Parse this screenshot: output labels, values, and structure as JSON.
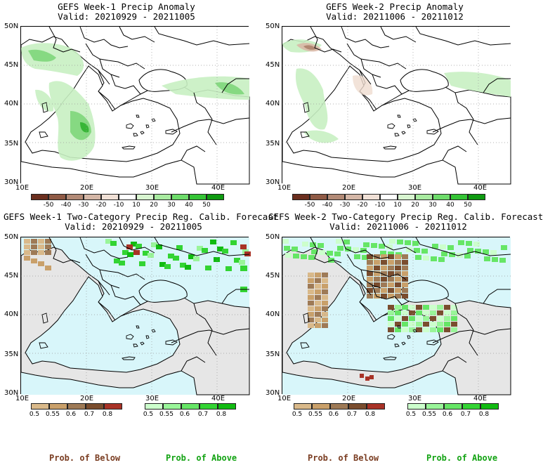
{
  "panels": [
    {
      "title1": "GEFS Week-1 Precip Anomaly",
      "title2": "Valid: 20210929 - 20211005"
    },
    {
      "title1": "GEFS Week-2 Precip Anomaly",
      "title2": "Valid: 20211006 - 20211012"
    },
    {
      "title1": "GEFS Week-1 Two-Category Precip Reg. Calib. Forecast",
      "title2": "Valid: 20210929 - 20211005"
    },
    {
      "title1": "GEFS Week-2 Two-Category Precip Reg. Calib. Forecast",
      "title2": "Valid: 20211006 - 20211012"
    }
  ],
  "lat_labels": [
    "50N",
    "45N",
    "40N",
    "35N",
    "30N"
  ],
  "lon_labels": [
    "10E",
    "20E",
    "30E",
    "40E"
  ],
  "anomaly_colorbar": {
    "labels": [
      "-50",
      "-40",
      "-30",
      "-20",
      "-10",
      "10",
      "20",
      "30",
      "40",
      "50"
    ],
    "colors": [
      "#6b2e1e",
      "#8f5a45",
      "#b28a76",
      "#d4b6a6",
      "#f0e0d6",
      "#ffffff",
      "#d8f5d0",
      "#a8eba0",
      "#6ddc6a",
      "#34c435",
      "#0e9a10"
    ]
  },
  "prob_colorbar": {
    "below_labels": [
      "0.5",
      "0.55",
      "0.6",
      "0.7",
      "0.8"
    ],
    "below_colors": [
      "#d9b98a",
      "#c9a06a",
      "#9e7a56",
      "#7a4d2e",
      "#a83226"
    ],
    "above_labels": [
      "0.5",
      "0.55",
      "0.6",
      "0.7",
      "0.8"
    ],
    "above_colors": [
      "#ccffcc",
      "#99f599",
      "#66e666",
      "#33d433",
      "#11bb11"
    ]
  },
  "footer": {
    "below": "Prob. of Below",
    "above": "Prob. of Above"
  },
  "colors": {
    "land_gray": "#e6e6e6",
    "sea_cyan": "#d8f6fa",
    "green_light": "#c8f0c2",
    "green_mid": "#7ed67a",
    "green_dark": "#2fb12f",
    "brown": "#8f5a45",
    "tan": "#d4b38a"
  }
}
